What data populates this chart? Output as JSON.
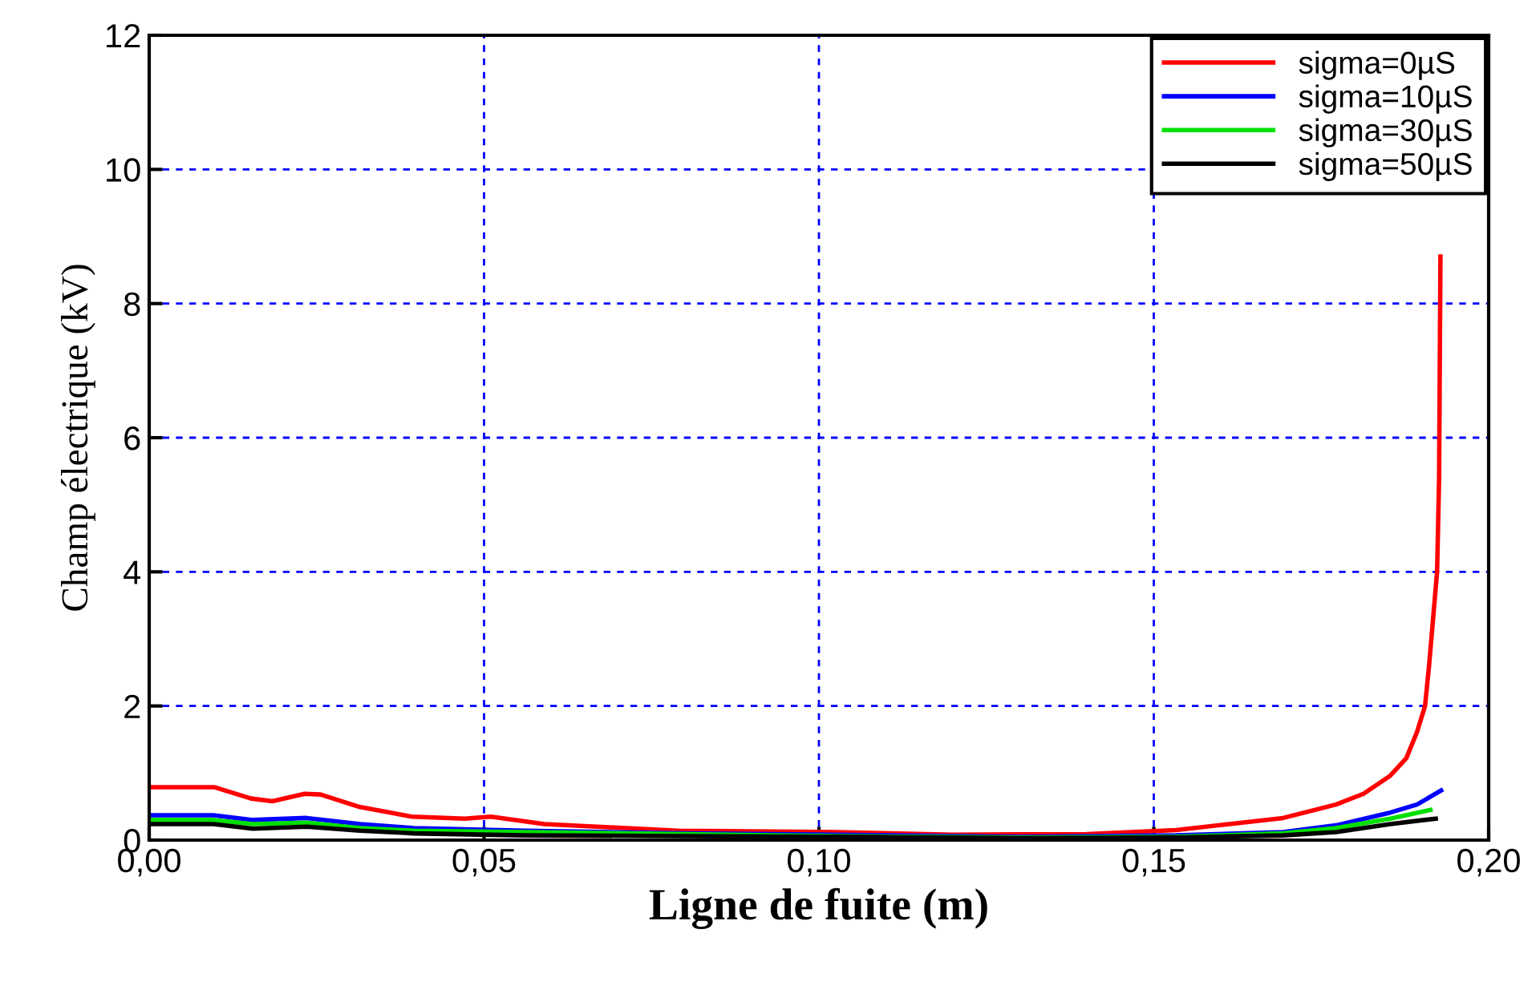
{
  "chart_data": {
    "type": "line",
    "xlabel": "Ligne de fuite (m)",
    "ylabel": "Champ électrique (kV)",
    "xlim": [
      0,
      0.2
    ],
    "xticks": [
      {
        "value": 0,
        "label": "0,00"
      },
      {
        "value": 0.05,
        "label": "0,05"
      },
      {
        "value": 0.1,
        "label": "0,10"
      },
      {
        "value": 0.15,
        "label": "0,15"
      },
      {
        "value": 0.2,
        "label": "0,20"
      }
    ],
    "ylim": [
      0,
      12
    ],
    "yticks": [
      0,
      2,
      4,
      6,
      8,
      10,
      12
    ],
    "grid": true,
    "legend": "top right",
    "series": [
      {
        "name": "sigma=0µS",
        "color": "#ff0000",
        "x": [
          0,
          0.0097,
          0.0152,
          0.0184,
          0.0232,
          0.0256,
          0.0312,
          0.0392,
          0.0471,
          0.051,
          0.059,
          0.0711,
          0.079,
          0.1025,
          0.12,
          0.14,
          0.1533,
          0.1613,
          0.1693,
          0.1772,
          0.1813,
          0.1853,
          0.1877,
          0.1893,
          0.1905,
          0.1911,
          0.1923,
          0.1926,
          0.1928
        ],
        "values": [
          0.79,
          0.79,
          0.62,
          0.58,
          0.69,
          0.68,
          0.5,
          0.35,
          0.32,
          0.35,
          0.24,
          0.18,
          0.14,
          0.12,
          0.08,
          0.09,
          0.15,
          0.24,
          0.33,
          0.53,
          0.69,
          0.96,
          1.22,
          1.61,
          2.0,
          2.6,
          4.0,
          5.4,
          8.7
        ]
      },
      {
        "name": "sigma=10µS",
        "color": "#0000ff",
        "x": [
          0,
          0.0096,
          0.0155,
          0.0235,
          0.0315,
          0.0395,
          0.056,
          0.08,
          0.1025,
          0.13,
          0.1533,
          0.1693,
          0.1772,
          0.1853,
          0.1893,
          0.1929
        ],
        "values": [
          0.37,
          0.37,
          0.3,
          0.33,
          0.24,
          0.18,
          0.14,
          0.1,
          0.08,
          0.05,
          0.07,
          0.12,
          0.22,
          0.41,
          0.53,
          0.74
        ]
      },
      {
        "name": "sigma=30µS",
        "color": "#00e000",
        "x": [
          0,
          0.0096,
          0.0155,
          0.0235,
          0.0315,
          0.0395,
          0.056,
          0.08,
          0.1025,
          0.13,
          0.1533,
          0.1693,
          0.1772,
          0.1853,
          0.1913
        ],
        "values": [
          0.3,
          0.3,
          0.24,
          0.26,
          0.18,
          0.14,
          0.12,
          0.09,
          0.06,
          0.04,
          0.05,
          0.1,
          0.18,
          0.32,
          0.45
        ]
      },
      {
        "name": "sigma=50µS",
        "color": "#000000",
        "x": [
          0,
          0.0096,
          0.0155,
          0.0235,
          0.0315,
          0.0395,
          0.056,
          0.08,
          0.1025,
          0.13,
          0.1533,
          0.1693,
          0.1772,
          0.1853,
          0.1921
        ],
        "values": [
          0.24,
          0.24,
          0.17,
          0.2,
          0.14,
          0.1,
          0.07,
          0.06,
          0.05,
          0.03,
          0.04,
          0.07,
          0.12,
          0.24,
          0.32
        ]
      }
    ]
  }
}
